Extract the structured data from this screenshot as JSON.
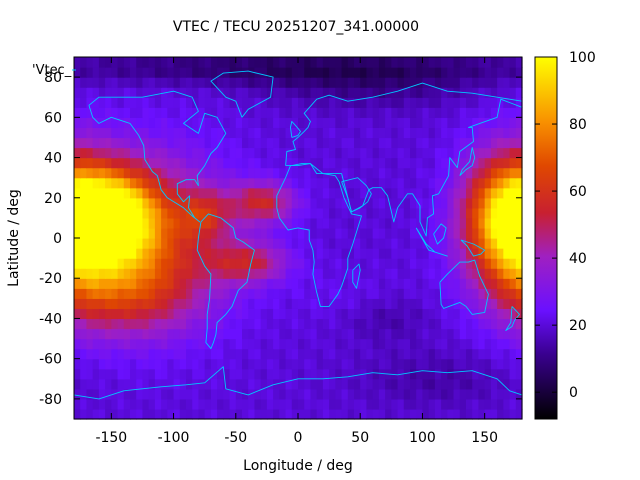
{
  "chart_data": {
    "type": "heatmap",
    "title": "VTEC / TECU 20251207_341.00000",
    "xlabel": "Longitude / deg",
    "ylabel": "Latitude / deg",
    "xlim": [
      -180,
      180
    ],
    "ylim": [
      -90,
      90
    ],
    "x_ticks": [
      -150,
      -100,
      -50,
      0,
      50,
      100,
      150
    ],
    "y_ticks": [
      -80,
      -60,
      -40,
      -20,
      0,
      20,
      40,
      60,
      80
    ],
    "legend_entry": "'Vtec_",
    "colorbar": {
      "range": [
        -8,
        100
      ],
      "ticks": [
        0,
        20,
        40,
        60,
        80,
        100
      ],
      "stops": [
        {
          "v": 0.0,
          "c": "#000000"
        },
        {
          "v": 0.18,
          "c": "#3a0090"
        },
        {
          "v": 0.3,
          "c": "#6a10ff"
        },
        {
          "v": 0.45,
          "c": "#a020c0"
        },
        {
          "v": 0.57,
          "c": "#c82030"
        },
        {
          "v": 0.7,
          "c": "#e04800"
        },
        {
          "v": 0.82,
          "c": "#f89000"
        },
        {
          "v": 1.0,
          "c": "#ffff00"
        }
      ]
    },
    "grid_step_deg": 5,
    "background_tecu": 20,
    "features": [
      {
        "name": "pacific-eq-peak",
        "lon": -152,
        "lat": 10,
        "amp": 72,
        "sx": 26,
        "sy": 16
      },
      {
        "name": "pacific-band",
        "lon": -125,
        "lat": 0,
        "amp": 40,
        "sx": 48,
        "sy": 28
      },
      {
        "name": "south-pacific",
        "lon": -140,
        "lat": -28,
        "amp": 22,
        "sx": 38,
        "sy": 14
      },
      {
        "name": "atlantic-north-crest",
        "lon": -28,
        "lat": 18,
        "amp": 32,
        "sx": 18,
        "sy": 7
      },
      {
        "name": "atlantic-south-crest",
        "lon": -40,
        "lat": -12,
        "amp": 28,
        "sx": 22,
        "sy": 7
      },
      {
        "name": "caribbean",
        "lon": -75,
        "lat": 12,
        "amp": 22,
        "sx": 14,
        "sy": 8
      },
      {
        "name": "west-pacific-peak",
        "lon": 160,
        "lat": 10,
        "amp": 48,
        "sx": 22,
        "sy": 22
      },
      {
        "name": "west-pacific-edge",
        "lon": 185,
        "lat": 5,
        "amp": 30,
        "sx": 20,
        "sy": 25
      },
      {
        "name": "south-africa-patch",
        "lon": 40,
        "lat": -30,
        "amp": 3,
        "sx": 30,
        "sy": 10
      },
      {
        "name": "arctic-low",
        "lon": 0,
        "lat": 85,
        "amp": -14,
        "sx": 140,
        "sy": 6
      },
      {
        "name": "siberia-low",
        "lon": 60,
        "lat": 75,
        "amp": -8,
        "sx": 60,
        "sy": 8
      },
      {
        "name": "indian-ocean-low",
        "lon": 70,
        "lat": -40,
        "amp": -6,
        "sx": 25,
        "sy": 8
      },
      {
        "name": "antarctic-low",
        "lon": 110,
        "lat": -70,
        "amp": -6,
        "sx": 45,
        "sy": 10
      }
    ],
    "coastlines": [
      {
        "name": "north-america",
        "points": [
          [
            -168,
            66
          ],
          [
            -160,
            70
          ],
          [
            -140,
            70
          ],
          [
            -125,
            70
          ],
          [
            -100,
            73
          ],
          [
            -85,
            70
          ],
          [
            -80,
            63
          ],
          [
            -92,
            57
          ],
          [
            -80,
            52
          ],
          [
            -75,
            62
          ],
          [
            -65,
            60
          ],
          [
            -58,
            52
          ],
          [
            -65,
            45
          ],
          [
            -70,
            42
          ],
          [
            -75,
            36
          ],
          [
            -81,
            31
          ],
          [
            -80,
            26
          ],
          [
            -83,
            29
          ],
          [
            -90,
            29
          ],
          [
            -97,
            27
          ],
          [
            -97,
            22
          ],
          [
            -92,
            18
          ],
          [
            -87,
            21
          ],
          [
            -88,
            15
          ],
          [
            -83,
            10
          ],
          [
            -79,
            8
          ],
          [
            -85,
            11
          ],
          [
            -92,
            15
          ],
          [
            -105,
            20
          ],
          [
            -110,
            24
          ],
          [
            -113,
            31
          ],
          [
            -117,
            33
          ],
          [
            -123,
            39
          ],
          [
            -124,
            46
          ],
          [
            -128,
            51
          ],
          [
            -135,
            57
          ],
          [
            -150,
            60
          ],
          [
            -160,
            57
          ],
          [
            -165,
            60
          ],
          [
            -168,
            66
          ]
        ]
      },
      {
        "name": "south-america",
        "points": [
          [
            -78,
            8
          ],
          [
            -72,
            12
          ],
          [
            -62,
            10
          ],
          [
            -52,
            5
          ],
          [
            -50,
            0
          ],
          [
            -44,
            -2
          ],
          [
            -35,
            -6
          ],
          [
            -38,
            -13
          ],
          [
            -41,
            -22
          ],
          [
            -48,
            -26
          ],
          [
            -53,
            -34
          ],
          [
            -58,
            -38
          ],
          [
            -65,
            -42
          ],
          [
            -66,
            -48
          ],
          [
            -68,
            -52
          ],
          [
            -70,
            -55
          ],
          [
            -74,
            -52
          ],
          [
            -73,
            -45
          ],
          [
            -73,
            -38
          ],
          [
            -71,
            -30
          ],
          [
            -70,
            -18
          ],
          [
            -75,
            -14
          ],
          [
            -81,
            -6
          ],
          [
            -80,
            0
          ],
          [
            -78,
            8
          ]
        ]
      },
      {
        "name": "europe-asia",
        "points": [
          [
            -10,
            36
          ],
          [
            -9,
            43
          ],
          [
            -2,
            44
          ],
          [
            -4,
            48
          ],
          [
            0,
            50
          ],
          [
            5,
            53
          ],
          [
            8,
            55
          ],
          [
            10,
            58
          ],
          [
            5,
            62
          ],
          [
            15,
            69
          ],
          [
            25,
            71
          ],
          [
            40,
            68
          ],
          [
            60,
            70
          ],
          [
            80,
            73
          ],
          [
            100,
            77
          ],
          [
            120,
            73
          ],
          [
            140,
            72
          ],
          [
            160,
            70
          ],
          [
            180,
            68
          ]
        ]
      },
      {
        "name": "asia-south",
        "points": [
          [
            35,
            32
          ],
          [
            43,
            13
          ],
          [
            52,
            16
          ],
          [
            57,
            24
          ],
          [
            60,
            25
          ],
          [
            67,
            25
          ],
          [
            72,
            21
          ],
          [
            77,
            8
          ],
          [
            80,
            15
          ],
          [
            88,
            22
          ],
          [
            92,
            22
          ],
          [
            98,
            16
          ],
          [
            98,
            8
          ],
          [
            103,
            1
          ],
          [
            104,
            10
          ],
          [
            109,
            12
          ],
          [
            108,
            21
          ],
          [
            113,
            22
          ],
          [
            121,
            31
          ],
          [
            122,
            40
          ],
          [
            128,
            35
          ],
          [
            130,
            43
          ],
          [
            141,
            48
          ],
          [
            140,
            55
          ],
          [
            137,
            55
          ],
          [
            160,
            60
          ],
          [
            163,
            69
          ],
          [
            180,
            65
          ]
        ]
      },
      {
        "name": "mediterranean-south",
        "points": [
          [
            -10,
            36
          ],
          [
            -5,
            36
          ],
          [
            3,
            37
          ],
          [
            10,
            37
          ],
          [
            15,
            32
          ],
          [
            25,
            32
          ],
          [
            35,
            32
          ]
        ]
      },
      {
        "name": "africa",
        "points": [
          [
            -17,
            21
          ],
          [
            -17,
            15
          ],
          [
            -15,
            10
          ],
          [
            -8,
            4
          ],
          [
            0,
            5
          ],
          [
            9,
            4
          ],
          [
            9,
            -1
          ],
          [
            12,
            -6
          ],
          [
            13,
            -12
          ],
          [
            12,
            -18
          ],
          [
            15,
            -27
          ],
          [
            18,
            -34
          ],
          [
            25,
            -34
          ],
          [
            32,
            -28
          ],
          [
            35,
            -24
          ],
          [
            40,
            -15
          ],
          [
            40,
            -10
          ],
          [
            44,
            -3
          ],
          [
            51,
            11
          ],
          [
            43,
            12
          ],
          [
            37,
            20
          ],
          [
            33,
            28
          ],
          [
            30,
            31
          ],
          [
            20,
            32
          ],
          [
            10,
            37
          ],
          [
            0,
            36
          ],
          [
            -6,
            36
          ],
          [
            -10,
            30
          ],
          [
            -17,
            21
          ]
        ]
      },
      {
        "name": "madagascar",
        "points": [
          [
            44,
            -16
          ],
          [
            49,
            -13
          ],
          [
            50,
            -16
          ],
          [
            47,
            -25
          ],
          [
            44,
            -22
          ],
          [
            44,
            -16
          ]
        ]
      },
      {
        "name": "arabia",
        "points": [
          [
            35,
            28
          ],
          [
            40,
            20
          ],
          [
            43,
            13
          ],
          [
            50,
            15
          ],
          [
            56,
            18
          ],
          [
            59,
            22
          ],
          [
            55,
            26
          ],
          [
            48,
            30
          ],
          [
            35,
            28
          ]
        ]
      },
      {
        "name": "australia",
        "points": [
          [
            114,
            -22
          ],
          [
            120,
            -18
          ],
          [
            130,
            -12
          ],
          [
            137,
            -12
          ],
          [
            142,
            -11
          ],
          [
            146,
            -19
          ],
          [
            153,
            -28
          ],
          [
            150,
            -37
          ],
          [
            140,
            -38
          ],
          [
            135,
            -34
          ],
          [
            130,
            -32
          ],
          [
            117,
            -35
          ],
          [
            115,
            -33
          ],
          [
            114,
            -22
          ]
        ]
      },
      {
        "name": "greenland",
        "points": [
          [
            -45,
            60
          ],
          [
            -40,
            64
          ],
          [
            -22,
            70
          ],
          [
            -20,
            80
          ],
          [
            -40,
            83
          ],
          [
            -60,
            82
          ],
          [
            -70,
            78
          ],
          [
            -58,
            70
          ],
          [
            -50,
            68
          ],
          [
            -45,
            60
          ]
        ]
      },
      {
        "name": "british-isles",
        "points": [
          [
            -5,
            50
          ],
          [
            0,
            51
          ],
          [
            2,
            53
          ],
          [
            -2,
            56
          ],
          [
            -5,
            58
          ],
          [
            -6,
            55
          ],
          [
            -5,
            50
          ]
        ]
      },
      {
        "name": "japan",
        "points": [
          [
            130,
            31
          ],
          [
            135,
            34
          ],
          [
            140,
            36
          ],
          [
            142,
            40
          ],
          [
            140,
            45
          ],
          [
            138,
            38
          ],
          [
            132,
            34
          ],
          [
            130,
            31
          ]
        ]
      },
      {
        "name": "indonesia",
        "points": [
          [
            95,
            5
          ],
          [
            105,
            -6
          ],
          [
            115,
            -8
          ],
          [
            120,
            -9
          ],
          [
            110,
            -7
          ],
          [
            103,
            -3
          ],
          [
            95,
            5
          ]
        ]
      },
      {
        "name": "borneo",
        "points": [
          [
            109,
            2
          ],
          [
            115,
            7
          ],
          [
            119,
            5
          ],
          [
            117,
            0
          ],
          [
            112,
            -3
          ],
          [
            109,
            2
          ]
        ]
      },
      {
        "name": "new-guinea",
        "points": [
          [
            131,
            -1
          ],
          [
            141,
            -3
          ],
          [
            150,
            -6
          ],
          [
            147,
            -8
          ],
          [
            141,
            -9
          ],
          [
            136,
            -4
          ],
          [
            131,
            -1
          ]
        ]
      },
      {
        "name": "new-zealand",
        "points": [
          [
            172,
            -34
          ],
          [
            178,
            -38
          ],
          [
            174,
            -41
          ],
          [
            172,
            -44
          ],
          [
            167,
            -46
          ],
          [
            171,
            -42
          ],
          [
            172,
            -34
          ]
        ]
      },
      {
        "name": "antarctica",
        "points": [
          [
            -180,
            -78
          ],
          [
            -160,
            -80
          ],
          [
            -140,
            -76
          ],
          [
            -110,
            -74
          ],
          [
            -90,
            -73
          ],
          [
            -75,
            -72
          ],
          [
            -60,
            -64
          ],
          [
            -58,
            -75
          ],
          [
            -40,
            -78
          ],
          [
            -20,
            -73
          ],
          [
            0,
            -70
          ],
          [
            20,
            -70
          ],
          [
            40,
            -69
          ],
          [
            60,
            -67
          ],
          [
            80,
            -68
          ],
          [
            100,
            -66
          ],
          [
            120,
            -67
          ],
          [
            140,
            -66
          ],
          [
            160,
            -70
          ],
          [
            170,
            -76
          ],
          [
            180,
            -78
          ]
        ]
      }
    ]
  }
}
